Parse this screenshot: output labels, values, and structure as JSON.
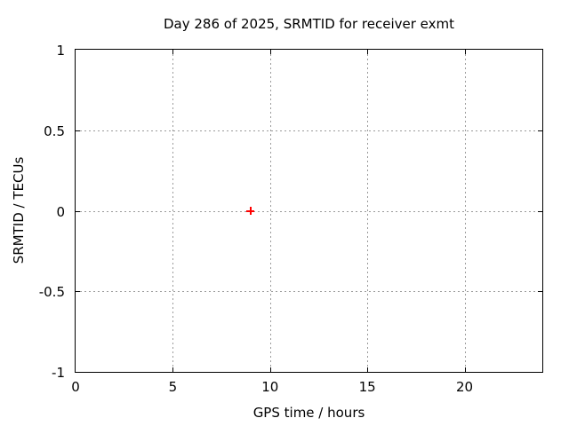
{
  "chart_data": {
    "type": "scatter",
    "title": "Day 286 of 2025, SRMTID for receiver exmt",
    "xlabel": "GPS time / hours",
    "ylabel": "SRMTID / TECUs",
    "xlim": [
      0,
      24
    ],
    "ylim": [
      -1,
      1
    ],
    "xticks": {
      "values": [
        0,
        5,
        10,
        15,
        20
      ],
      "labels": [
        "0",
        "5",
        "10",
        "15",
        "20"
      ]
    },
    "yticks": {
      "values": [
        -1,
        -0.5,
        0,
        0.5,
        1
      ],
      "labels": [
        "-1",
        "-0.5",
        "0",
        "0.5",
        "1"
      ]
    },
    "grid": true,
    "legend": "none",
    "series": [
      {
        "name": "SRMTID",
        "marker": "plus",
        "color": "#ff0000",
        "points": [
          {
            "x": 9,
            "y": 0
          }
        ]
      }
    ]
  },
  "colors": {
    "background": "#ffffff",
    "axis": "#000000",
    "grid": "#9a9a9a",
    "text": "#000000",
    "marker": "#ff0000"
  }
}
